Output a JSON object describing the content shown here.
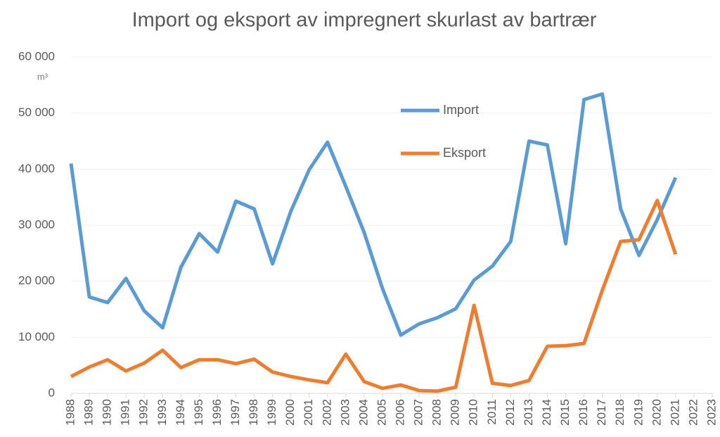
{
  "chart_data": {
    "type": "line",
    "title": "Import og eksport av impregnert skurlast av bartrær",
    "y_unit": "m³",
    "categories": [
      "1988",
      "1989",
      "1990",
      "1991",
      "1992",
      "1993",
      "1994",
      "1995",
      "1996",
      "1997",
      "1998",
      "1999",
      "2000",
      "2001",
      "2002",
      "2003",
      "2004",
      "2005",
      "2006",
      "2007",
      "2008",
      "2009",
      "2010",
      "2011",
      "2012",
      "2013",
      "2014",
      "2015",
      "2016",
      "2017",
      "2018",
      "2019",
      "2020",
      "2021",
      "2022",
      "2023"
    ],
    "series": [
      {
        "name": "Import",
        "color": "#5b9bd5",
        "values": [
          41000,
          17200,
          16200,
          20500,
          14700,
          11700,
          22500,
          28500,
          25200,
          34300,
          32900,
          23100,
          32500,
          39900,
          44800,
          36900,
          28700,
          18700,
          10400,
          12400,
          13500,
          15100,
          20200,
          22700,
          27100,
          45000,
          44300,
          26700,
          52400,
          53400,
          32900,
          24600,
          31000,
          38500,
          null,
          null
        ]
      },
      {
        "name": "Eksport",
        "color": "#ed7d31",
        "values": [
          3000,
          4700,
          6000,
          4000,
          5400,
          7700,
          4600,
          6000,
          6000,
          5300,
          6100,
          3800,
          3000,
          2400,
          1900,
          7000,
          2100,
          900,
          1500,
          500,
          400,
          1100,
          15700,
          1800,
          1400,
          2300,
          8400,
          8500,
          8900,
          18400,
          27100,
          27400,
          34400,
          24800,
          null,
          null
        ]
      }
    ],
    "ylim": [
      0,
      60000
    ],
    "yticks": [
      0,
      {
        "value": 10000,
        "label": "10 000"
      },
      {
        "value": 20000,
        "label": "20 000"
      },
      {
        "value": 30000,
        "label": "30 000"
      },
      {
        "value": 40000,
        "label": "40 000"
      },
      {
        "value": 50000,
        "label": "50 000"
      },
      {
        "value": 60000,
        "label": "60 000"
      }
    ],
    "grid": true,
    "legend_position": "upper center"
  }
}
